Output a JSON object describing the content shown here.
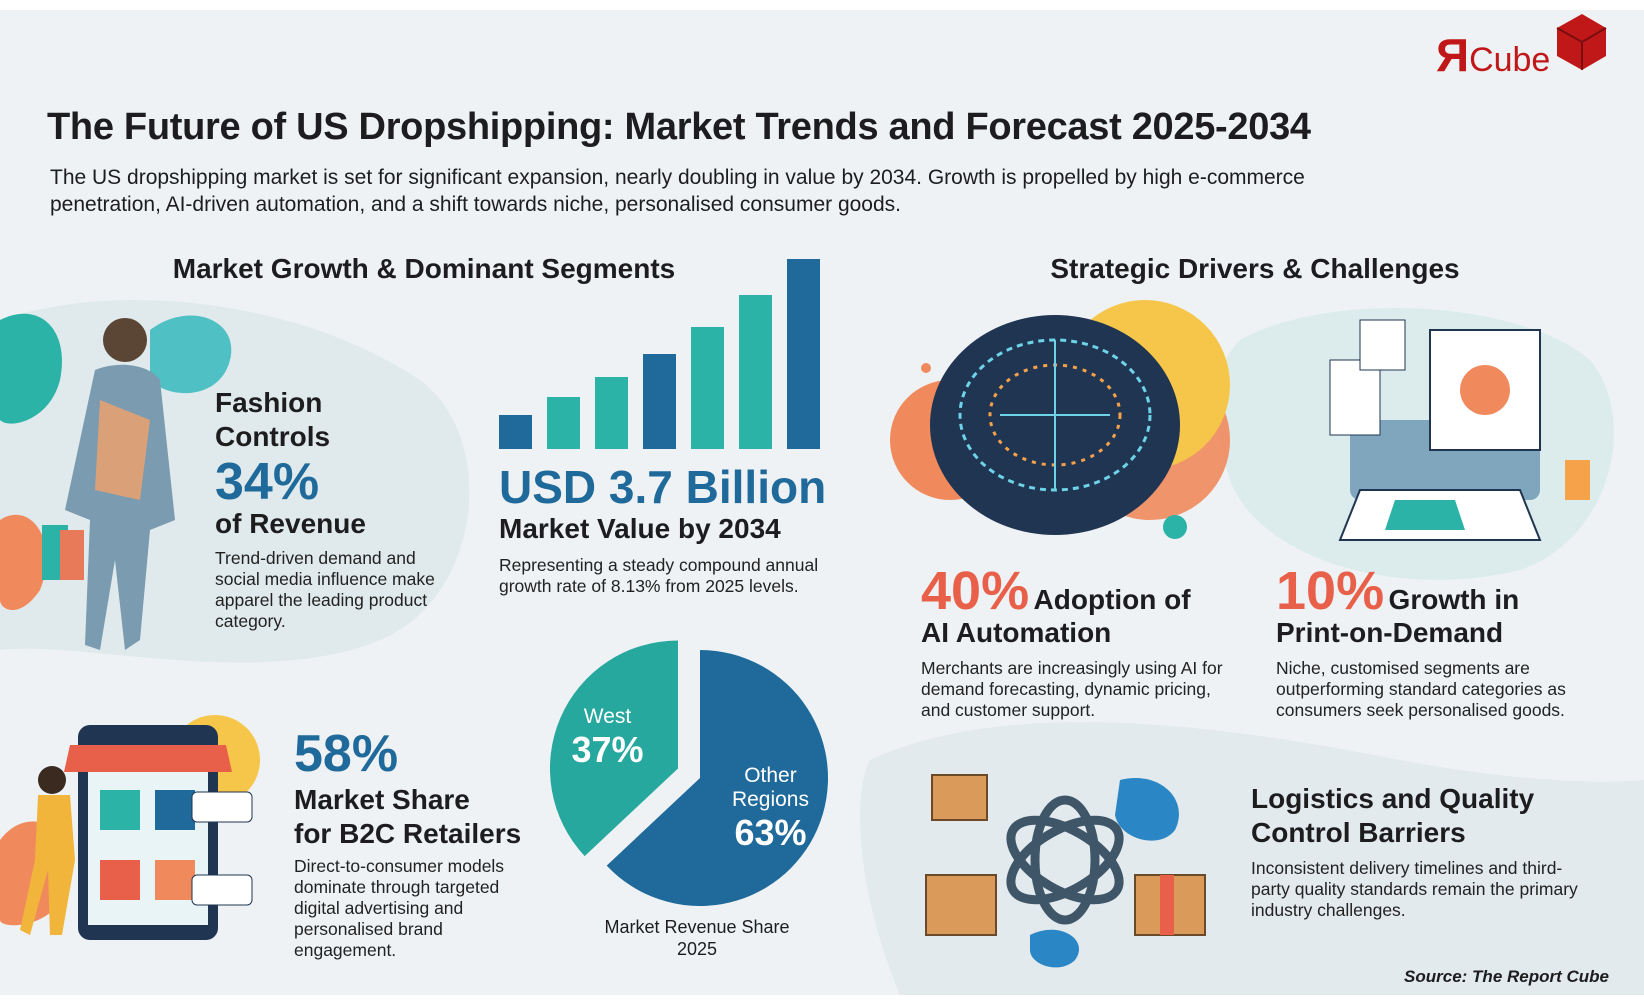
{
  "logo": {
    "mark": "Я",
    "text": "Cube"
  },
  "header": {
    "title": "The Future of US Dropshipping: Market Trends and Forecast 2025-2034",
    "subtitle": "The US dropshipping market is set for significant expansion, nearly doubling in value by 2034. Growth is propelled by high e-commerce penetration, AI-driven automation, and a shift towards niche, personalised consumer goods."
  },
  "sections": [
    {
      "heading": "Market Growth & Dominant Segments"
    },
    {
      "heading": "Strategic Drivers & Challenges"
    }
  ],
  "fashion": {
    "title_lines": [
      "Fashion",
      "Controls"
    ],
    "stat": "34%",
    "stat_label": "of Revenue",
    "description": "Trend-driven demand and social media influence make apparel the leading product category."
  },
  "market_value": {
    "value": "USD 3.7 Billion",
    "label": "Market Value by 2034",
    "description": "Representing a steady compound annual growth rate of 8.13% from 2025 levels."
  },
  "pie": {
    "slices": [
      {
        "name": "West",
        "value": 37,
        "value_label": "37%",
        "color": "#26a89e"
      },
      {
        "name": "Other Regions",
        "value": 63,
        "value_label": "63%",
        "color": "#1f6a9a"
      }
    ],
    "caption": [
      "Market Revenue Share",
      "2025"
    ]
  },
  "b2c": {
    "stat": "58%",
    "label_lines": [
      "Market Share",
      "for B2C Retailers"
    ],
    "description": "Direct-to-consumer models dominate through targeted digital advertising and personalised brand engagement."
  },
  "ai": {
    "stat": "40%",
    "label_lines": [
      "Adoption of",
      "AI Automation"
    ],
    "description": "Merchants are increasingly using AI for demand forecasting, dynamic pricing, and customer support."
  },
  "pod": {
    "stat": "10%",
    "label_lines": [
      "Growth in",
      "Print-on-Demand"
    ],
    "description": "Niche, customised segments are outperforming standard categories as consumers seek personalised goods."
  },
  "logistics": {
    "title_lines": [
      "Logistics and Quality",
      "Control Barriers"
    ],
    "description": "Inconsistent delivery timelines and third-party quality standards remain the primary industry challenges."
  },
  "source": "Source: The Report Cube"
}
